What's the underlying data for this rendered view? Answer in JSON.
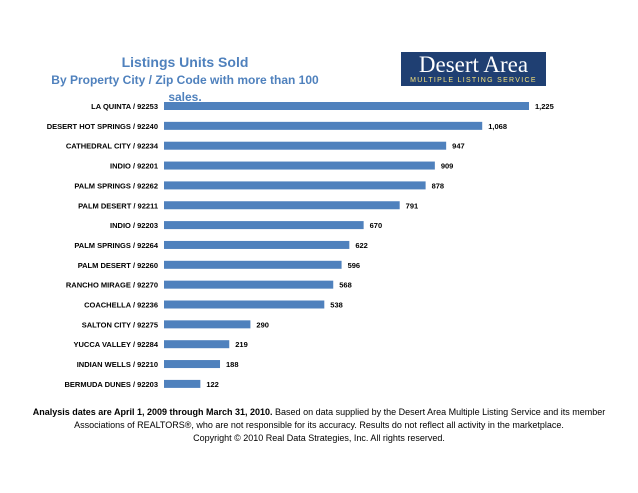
{
  "chart_data": {
    "type": "bar",
    "orientation": "horizontal",
    "title": "Listings Units Sold",
    "subtitle": "By Property City / Zip Code with more than 100 sales.",
    "categories": [
      "LA QUINTA / 92253",
      "DESERT HOT SPRINGS / 92240",
      "CATHEDRAL CITY / 92234",
      "INDIO / 92201",
      "PALM SPRINGS / 92262",
      "PALM DESERT / 92211",
      "INDIO / 92203",
      "PALM SPRINGS / 92264",
      "PALM DESERT / 92260",
      "RANCHO MIRAGE / 92270",
      "COACHELLA / 92236",
      "SALTON CITY / 92275",
      "YUCCA VALLEY / 92284",
      "INDIAN WELLS / 92210",
      "BERMUDA DUNES / 92203"
    ],
    "values": [
      1225,
      1068,
      947,
      909,
      878,
      791,
      670,
      622,
      596,
      568,
      538,
      290,
      219,
      188,
      122
    ],
    "value_labels": [
      "1,225",
      "1,068",
      "947",
      "909",
      "878",
      "791",
      "670",
      "622",
      "596",
      "568",
      "538",
      "290",
      "219",
      "188",
      "122"
    ],
    "xlim": [
      0,
      1225
    ],
    "bar_color": "#4f81bd",
    "xlabel": "",
    "ylabel": ""
  },
  "logo": {
    "main": "Desert Area",
    "sub": "MULTIPLE LISTING SERVICE"
  },
  "footer": {
    "bold": "Analysis dates are April 1, 2009 through March 31, 2010.",
    "rest": " Based on data supplied by the Desert Area Multiple Listing Service and its member Associations of REALTORS®, who are not responsible for its accuracy. Results do not reflect all activity in the marketplace.",
    "copyright": "Copyright © 2010 Real Data Strategies, Inc. All rights reserved."
  }
}
